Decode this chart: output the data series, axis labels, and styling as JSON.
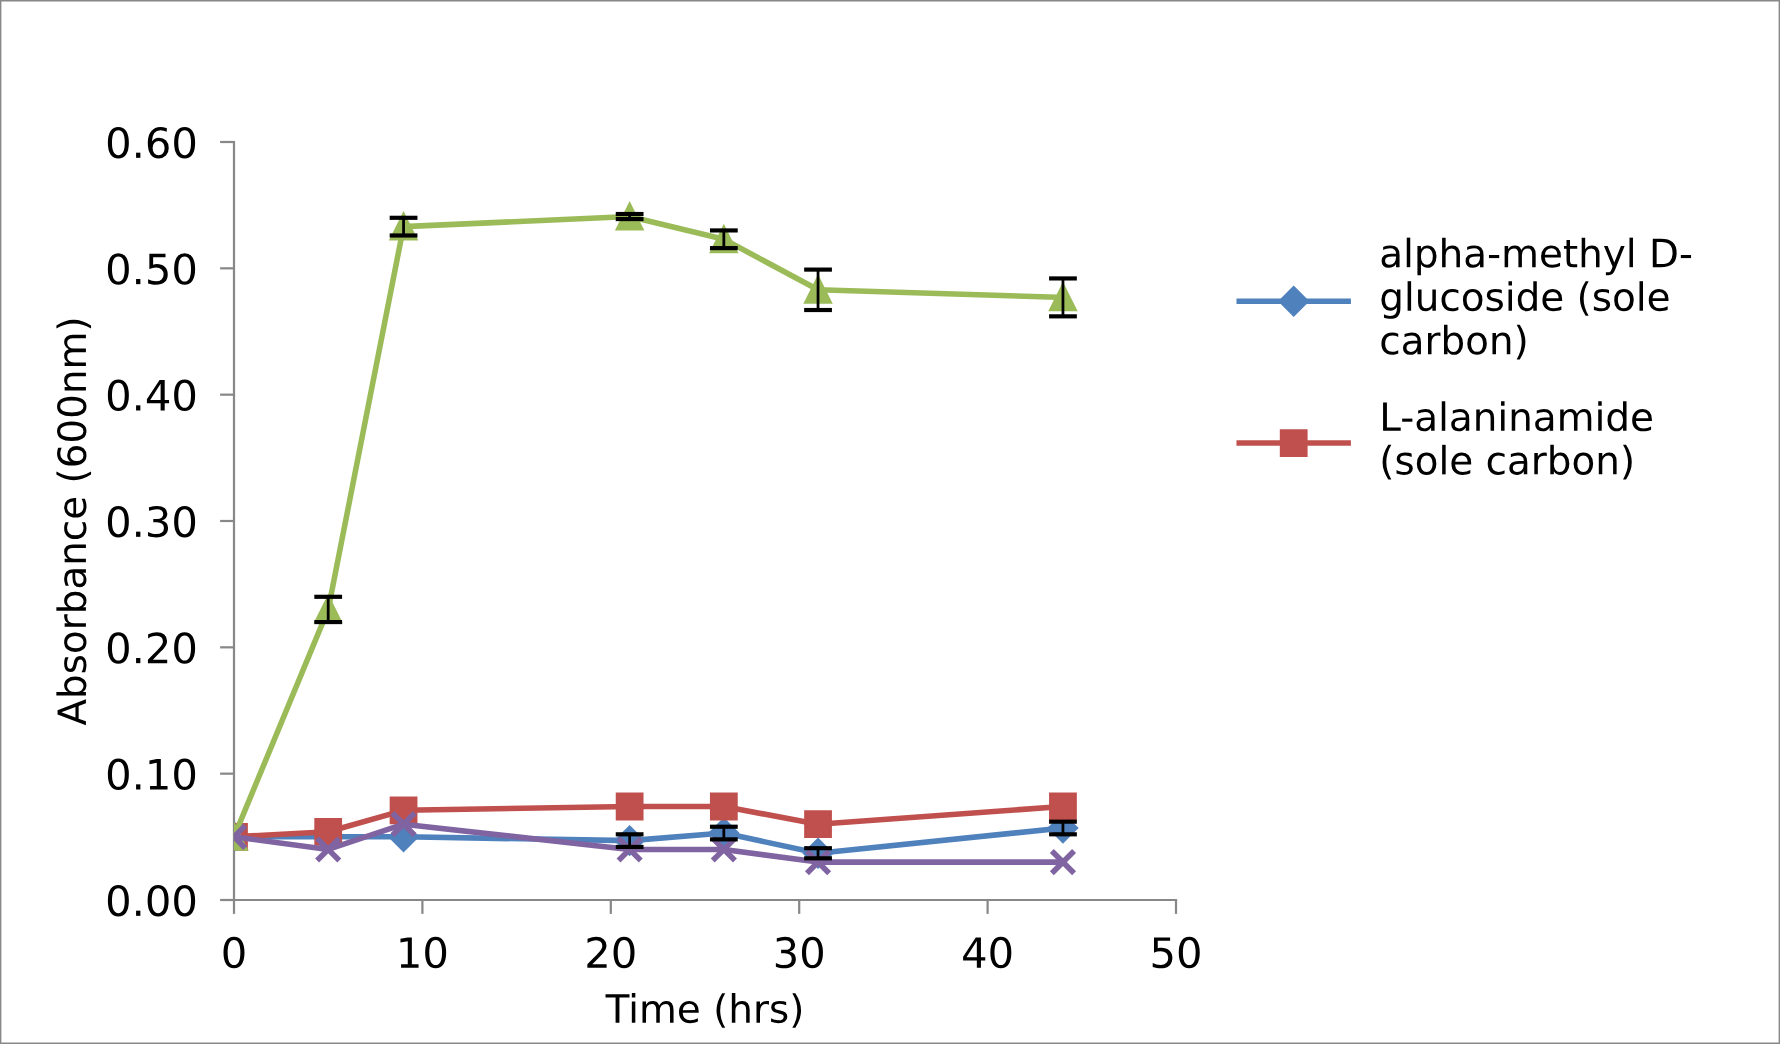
{
  "chart_data": {
    "type": "line",
    "xlabel": "Time (hrs)",
    "ylabel": "Absorbance (600nm)",
    "x": [
      0,
      5,
      9,
      21,
      26,
      31,
      44
    ],
    "xlim": [
      0,
      50
    ],
    "xticks": [
      0,
      10,
      20,
      30,
      40,
      50
    ],
    "ylim": [
      0,
      0.6
    ],
    "yticks": [
      {
        "value": 0,
        "label": "0.00"
      },
      {
        "value": 0.1,
        "label": "0.10"
      },
      {
        "value": 0.2,
        "label": "0.20"
      },
      {
        "value": 0.3,
        "label": "0.30"
      },
      {
        "value": 0.4,
        "label": "0.40"
      },
      {
        "value": 0.5,
        "label": "0.50"
      },
      {
        "value": 0.6,
        "label": "0.60"
      }
    ],
    "grid": false,
    "legend": "right",
    "series": [
      {
        "name": "alpha-methyl D-glucoside (sole carbon)",
        "color": "#4f81bd",
        "marker": "diamond",
        "values": [
          0.05,
          0.05,
          0.05,
          0.047,
          0.053,
          0.037,
          0.057
        ],
        "errors": [
          null,
          null,
          null,
          0.005,
          0.005,
          0.004,
          0.005
        ]
      },
      {
        "name": "L-alaninamide (sole carbon)",
        "color": "#c0504d",
        "marker": "square",
        "values": [
          0.05,
          0.054,
          0.071,
          0.074,
          0.074,
          0.06,
          0.074
        ]
      },
      {
        "color": "#9bbb59",
        "marker": "triangle",
        "values": [
          0.05,
          0.23,
          0.533,
          0.541,
          0.523,
          0.483,
          0.477
        ],
        "errors": [
          null,
          0.01,
          0.007,
          0.002,
          0.007,
          0.016,
          0.015
        ]
      },
      {
        "color": "#8064a2",
        "marker": "cross",
        "values": [
          0.05,
          0.04,
          0.06,
          0.04,
          0.04,
          0.03,
          0.03
        ]
      }
    ]
  }
}
